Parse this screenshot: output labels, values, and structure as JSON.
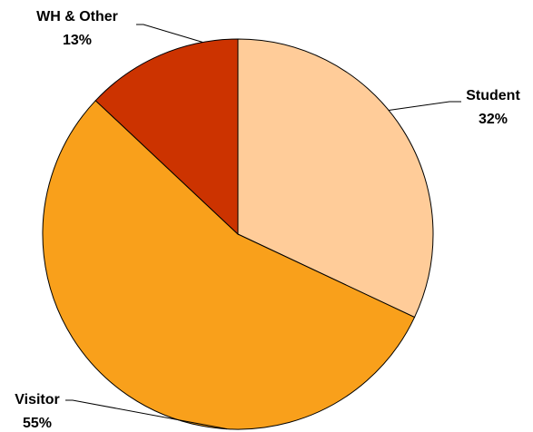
{
  "chart_data": {
    "type": "pie",
    "title": "",
    "slices": [
      {
        "label": "Student",
        "value": 32,
        "value_label": "32%",
        "color": "#FFCC99"
      },
      {
        "label": "Visitor",
        "value": 55,
        "value_label": "55%",
        "color": "#F9A01B"
      },
      {
        "label": "WH & Other",
        "value": 13,
        "value_label": "13%",
        "color": "#CC3300"
      }
    ],
    "start_angle_deg": 0,
    "direction": "clockwise",
    "legend": "none"
  }
}
